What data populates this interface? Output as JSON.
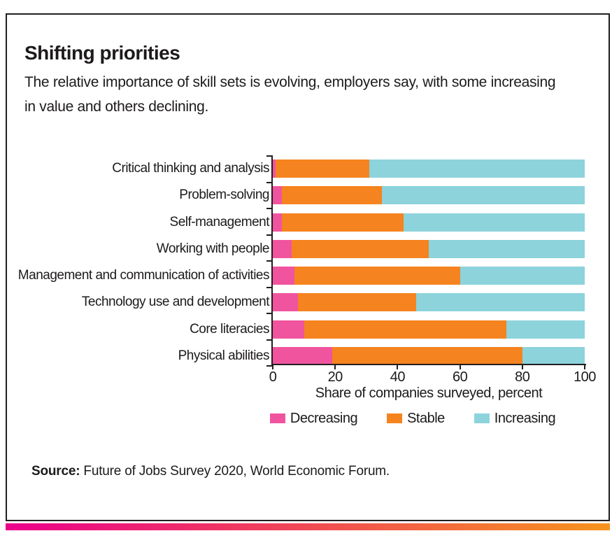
{
  "header": {
    "title": "Shifting priorities",
    "subtitle_line1": "The relative importance of skill sets is evolving, employers say, with some increasing",
    "subtitle_line2": "in value and others declining."
  },
  "chart_data": {
    "type": "bar",
    "orientation": "horizontal",
    "stacked": true,
    "categories": [
      "Critical thinking and analysis",
      "Problem-solving",
      "Self-management",
      "Working with people",
      "Management and communication of activities",
      "Technology use and development",
      "Core literacies",
      "Physical abilities"
    ],
    "series": [
      {
        "name": "Decreasing",
        "color": "#F0549E",
        "values": [
          1,
          3,
          3,
          6,
          7,
          8,
          10,
          19
        ]
      },
      {
        "name": "Stable",
        "color": "#F5831F",
        "values": [
          30,
          32,
          39,
          44,
          53,
          38,
          65,
          61
        ]
      },
      {
        "name": "Increasing",
        "color": "#8CD3DC",
        "values": [
          69,
          65,
          58,
          50,
          40,
          54,
          25,
          20
        ]
      }
    ],
    "xlabel": "Share of companies surveyed, percent",
    "xlim": [
      0,
      100
    ],
    "xticks": [
      0,
      20,
      40,
      60,
      80,
      100
    ],
    "grid": false,
    "legend_position": "bottom"
  },
  "legend": {
    "items": [
      {
        "label": "Decreasing",
        "color": "#F0549E"
      },
      {
        "label": "Stable",
        "color": "#F5831F"
      },
      {
        "label": "Increasing",
        "color": "#8CD3DC"
      }
    ]
  },
  "source": {
    "label": "Source:",
    "text": " Future of Jobs Survey 2020, World Economic Forum."
  },
  "style": {
    "border_color": "#221e1f",
    "gradient_left": "#EB008B",
    "gradient_right": "#F6941E"
  }
}
